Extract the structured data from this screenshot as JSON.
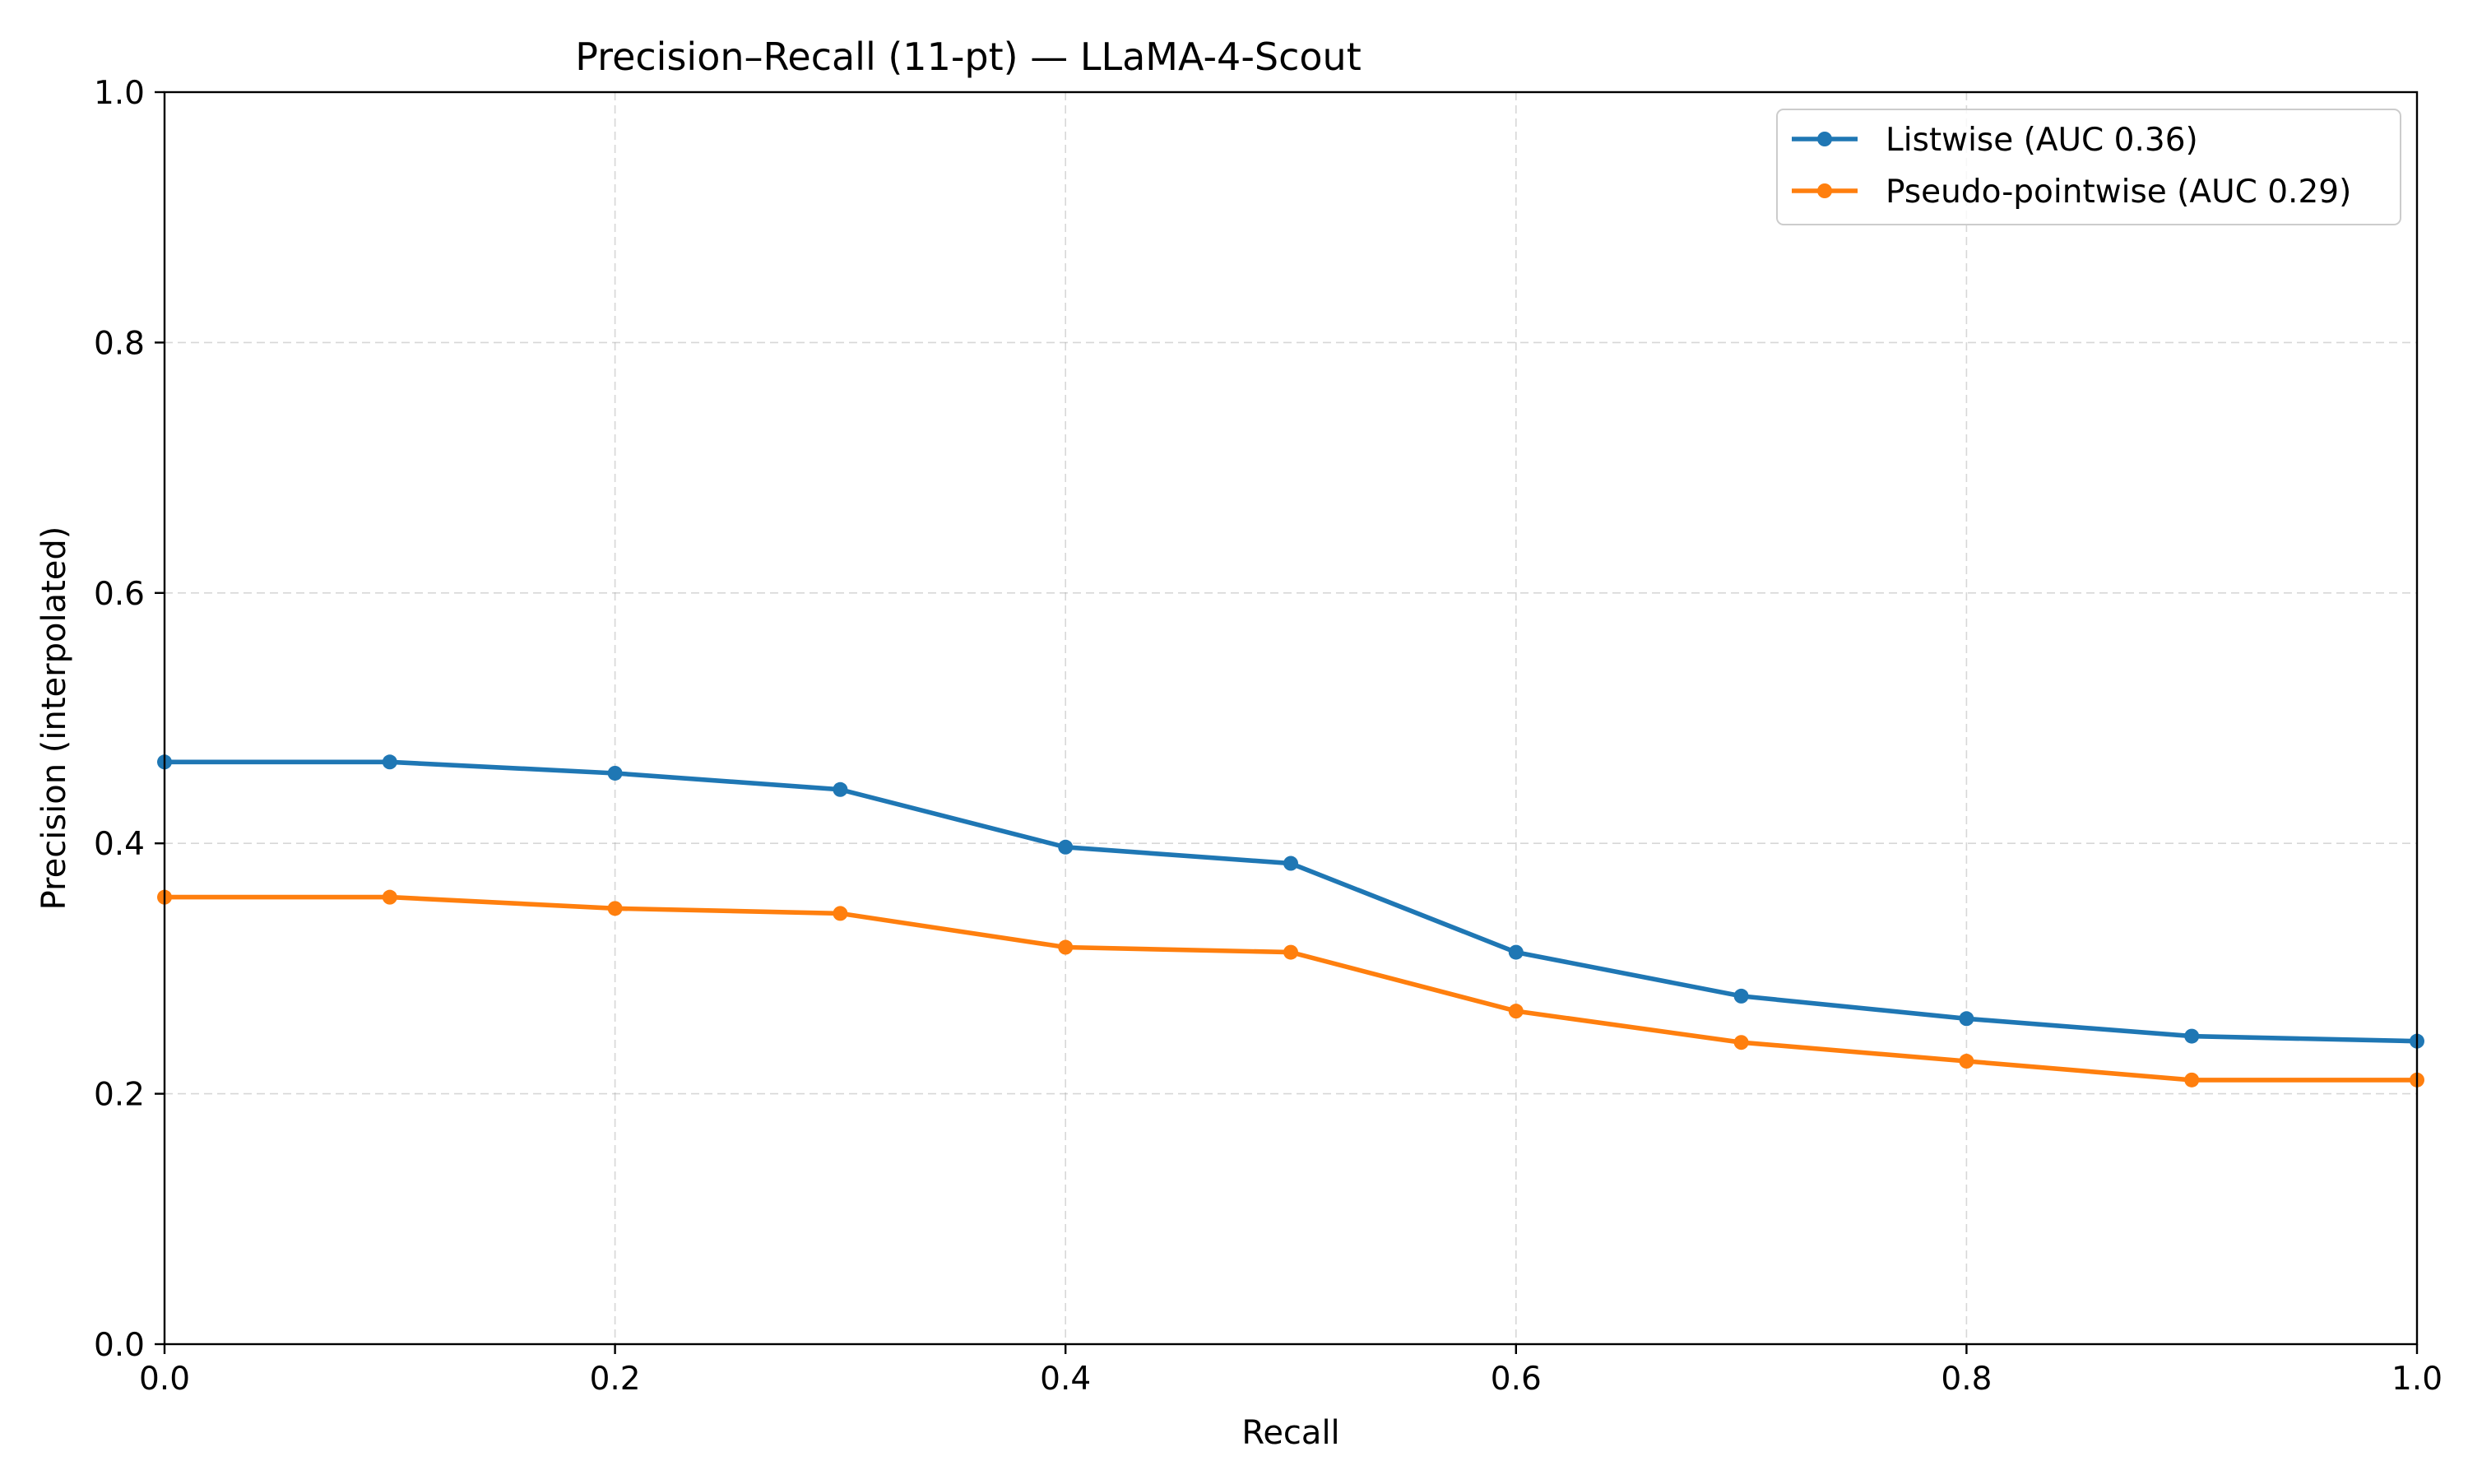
{
  "chart_data": {
    "type": "line",
    "title": "Precision–Recall (11-pt) — LLaMA-4-Scout",
    "xlabel": "Recall",
    "ylabel": "Precision (interpolated)",
    "xlim": [
      0.0,
      1.0
    ],
    "ylim": [
      0.0,
      1.0
    ],
    "xticks": [
      "0.0",
      "0.2",
      "0.4",
      "0.6",
      "0.8",
      "1.0"
    ],
    "yticks": [
      "0.0",
      "0.2",
      "0.4",
      "0.6",
      "0.8",
      "1.0"
    ],
    "grid": true,
    "legend_position": "top-right",
    "x": [
      0.0,
      0.1,
      0.2,
      0.3,
      0.4,
      0.5,
      0.6,
      0.7,
      0.8,
      0.9,
      1.0
    ],
    "series": [
      {
        "name": "Listwise (AUC 0.36)",
        "color": "#1f77b4",
        "values": [
          0.465,
          0.465,
          0.456,
          0.443,
          0.397,
          0.384,
          0.313,
          0.278,
          0.26,
          0.246,
          0.242
        ]
      },
      {
        "name": "Pseudo-pointwise (AUC 0.29)",
        "color": "#ff7f0e",
        "values": [
          0.357,
          0.357,
          0.348,
          0.344,
          0.317,
          0.313,
          0.266,
          0.241,
          0.226,
          0.211,
          0.211
        ]
      }
    ]
  }
}
